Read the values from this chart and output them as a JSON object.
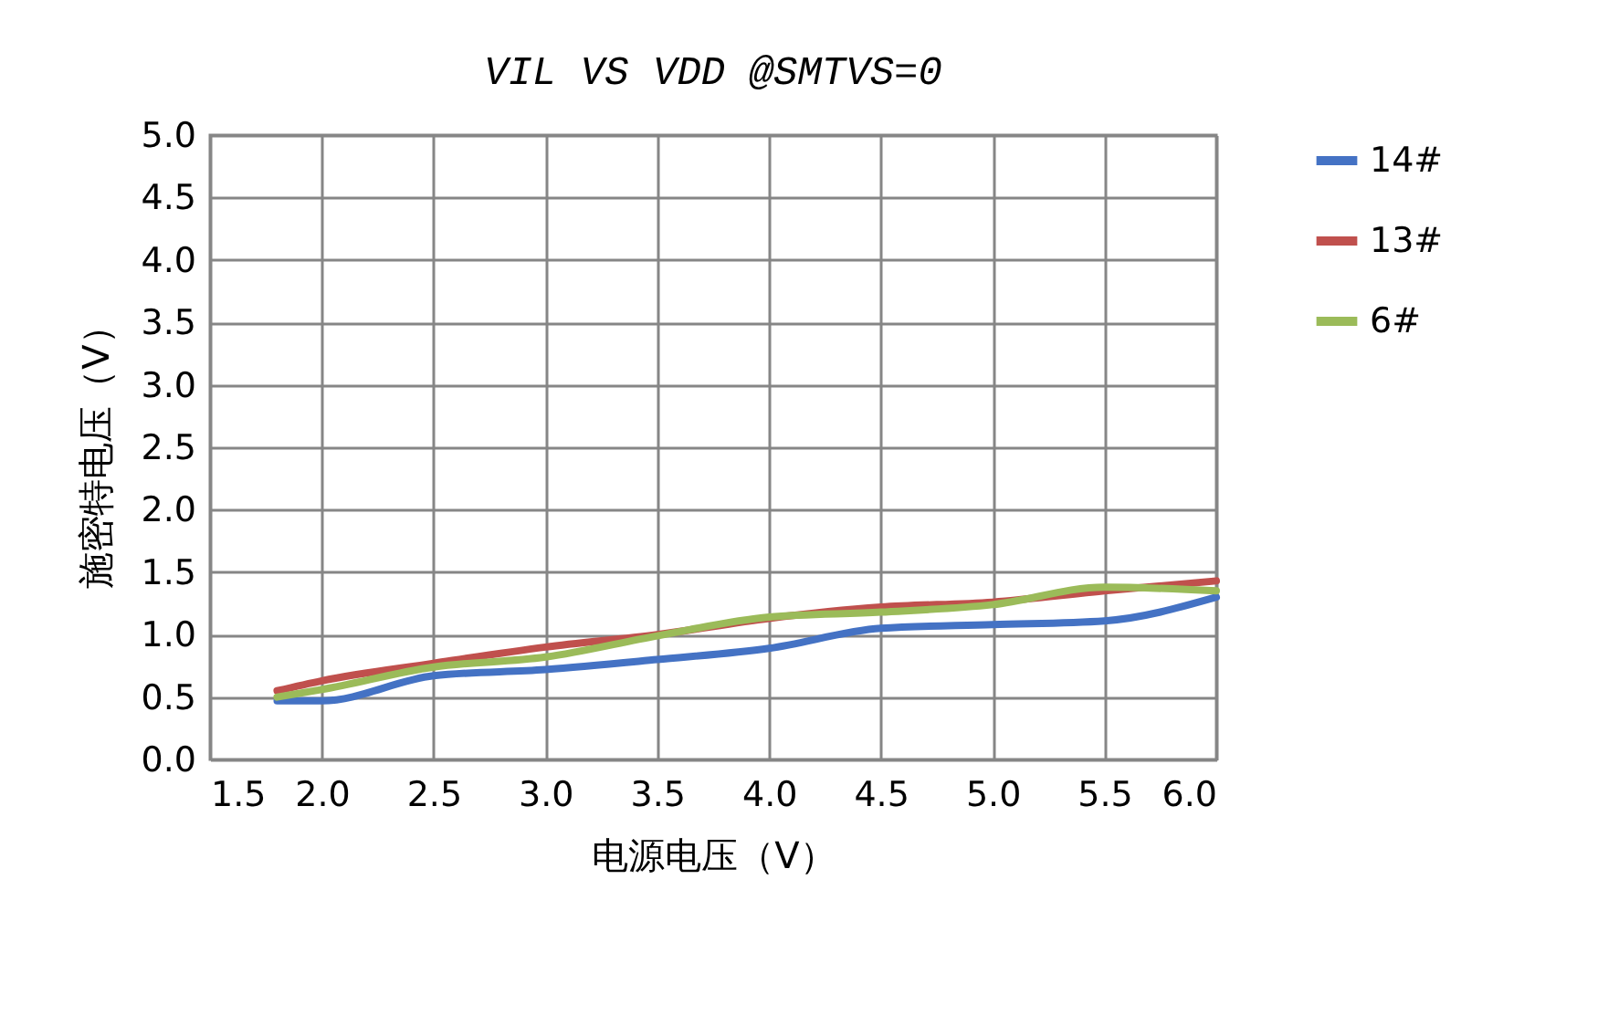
{
  "chart_data": {
    "type": "line",
    "title": "VIL VS VDD @SMTVS=0",
    "xlabel": "电源电压（V）",
    "ylabel": "施密特电压（V）",
    "x": [
      1.8,
      2.0,
      2.5,
      3.0,
      3.5,
      4.0,
      4.5,
      5.0,
      5.5,
      6.0
    ],
    "xlim": [
      1.5,
      6.0
    ],
    "xticks": [
      {
        "value": 1.5,
        "label": "1.5"
      },
      {
        "value": 2,
        "label": "2.0"
      },
      {
        "value": 2.5,
        "label": "2.5"
      },
      {
        "value": 3,
        "label": "3.0"
      },
      {
        "value": 3.5,
        "label": "3.5"
      },
      {
        "value": 4,
        "label": "4.0"
      },
      {
        "value": 4.5,
        "label": "4.5"
      },
      {
        "value": 5,
        "label": "5.0"
      },
      {
        "value": 5.5,
        "label": "5.5"
      },
      {
        "value": 6,
        "label": "6.0"
      }
    ],
    "ylim": [
      0,
      5
    ],
    "yticks": [
      {
        "value": 0,
        "label": "0.0"
      },
      {
        "value": 0.5,
        "label": "0.5"
      },
      {
        "value": 1,
        "label": "1.0"
      },
      {
        "value": 1.5,
        "label": "1.5"
      },
      {
        "value": 2,
        "label": "2.0"
      },
      {
        "value": 2.5,
        "label": "2.5"
      },
      {
        "value": 3,
        "label": "3.0"
      },
      {
        "value": 3.5,
        "label": "3.5"
      },
      {
        "value": 4,
        "label": "4.0"
      },
      {
        "value": 4.5,
        "label": "4.5"
      },
      {
        "value": 5,
        "label": "5.0"
      }
    ],
    "series": [
      {
        "name": "14#",
        "color": "#4472c4",
        "values": [
          0.47,
          0.47,
          0.67,
          0.72,
          0.8,
          0.89,
          1.05,
          1.08,
          1.11,
          1.3
        ]
      },
      {
        "name": "13#",
        "color": "#c0504d",
        "values": [
          0.55,
          0.63,
          0.77,
          0.9,
          1.0,
          1.13,
          1.22,
          1.26,
          1.35,
          1.43
        ]
      },
      {
        "name": "6#",
        "color": "#9bbb59",
        "values": [
          0.5,
          0.56,
          0.74,
          0.82,
          0.99,
          1.14,
          1.18,
          1.24,
          1.38,
          1.35
        ]
      }
    ],
    "grid": true,
    "legend": "right",
    "marker": "none",
    "line_style": "solid"
  }
}
